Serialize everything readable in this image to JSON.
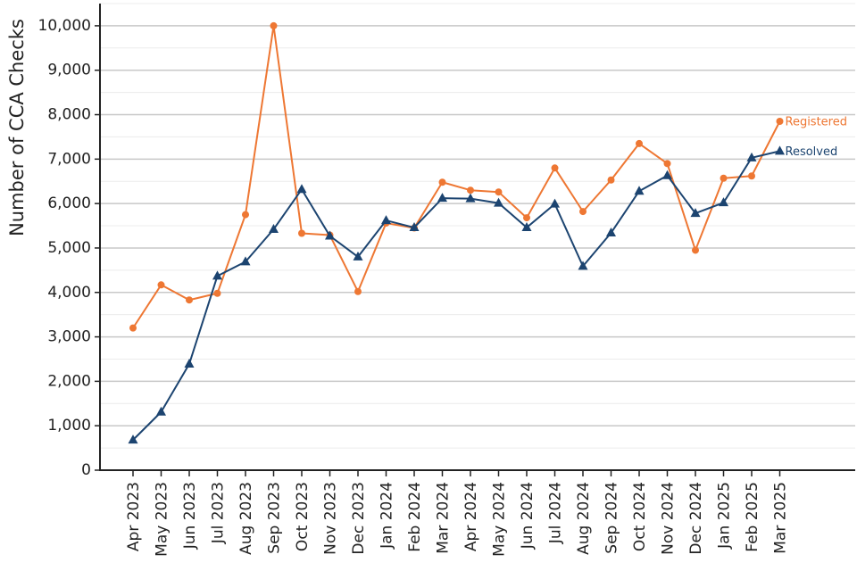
{
  "chart_data": {
    "type": "line",
    "title": "",
    "xlabel": "",
    "ylabel": "Number of CCA Checks",
    "ylim": [
      0,
      10500
    ],
    "yticks": [
      0,
      1000,
      2000,
      3000,
      4000,
      5000,
      6000,
      7000,
      8000,
      9000,
      10000
    ],
    "ytick_labels": [
      "0",
      "1,000",
      "2,000",
      "3,000",
      "4,000",
      "5,000",
      "6,000",
      "7,000",
      "8,000",
      "9,000",
      "10,000"
    ],
    "grid": true,
    "categories": [
      "Apr 2023",
      "May 2023",
      "Jun 2023",
      "Jul 2023",
      "Aug 2023",
      "Sep 2023",
      "Oct 2023",
      "Nov 2023",
      "Dec 2023",
      "Jan 2024",
      "Feb 2024",
      "Mar 2024",
      "Apr 2024",
      "May 2024",
      "Jun 2024",
      "Jul 2024",
      "Aug 2024",
      "Sep 2024",
      "Oct 2024",
      "Nov 2024",
      "Dec 2024",
      "Jan 2025",
      "Feb 2025",
      "Mar 2025"
    ],
    "series": [
      {
        "name": "Registered",
        "color": "#ee7733",
        "marker": "circle",
        "values": [
          3200,
          4170,
          3830,
          3980,
          5750,
          10000,
          5330,
          5290,
          4020,
          5560,
          5450,
          6480,
          6300,
          6260,
          5680,
          6800,
          5820,
          6530,
          7350,
          6900,
          4950,
          6570,
          6620,
          7850
        ]
      },
      {
        "name": "Resolved",
        "color": "#1c4470",
        "marker": "triangle",
        "values": [
          680,
          1310,
          2390,
          4370,
          4690,
          5420,
          6320,
          5270,
          4800,
          5620,
          5460,
          6120,
          6110,
          6010,
          5460,
          5990,
          4590,
          5340,
          6280,
          6630,
          5780,
          6020,
          7030,
          7180
        ]
      }
    ]
  }
}
